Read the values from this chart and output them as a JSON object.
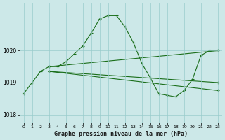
{
  "background_color": "#cce8e8",
  "plot_bg_color": "#cce8e8",
  "grid_color": "#99cccc",
  "line_color": "#1a6e1a",
  "title": "Graphe pression niveau de la mer (hPa)",
  "xlim": [
    -0.5,
    23.5
  ],
  "ylim": [
    1017.75,
    1021.5
  ],
  "yticks": [
    1018,
    1019,
    1020
  ],
  "xticks": [
    0,
    1,
    2,
    3,
    4,
    5,
    6,
    7,
    8,
    9,
    10,
    11,
    12,
    13,
    14,
    15,
    16,
    17,
    18,
    19,
    20,
    21,
    22,
    23
  ],
  "series": [
    {
      "x": [
        0,
        1,
        2,
        3,
        4,
        5,
        6,
        7,
        8,
        9,
        10,
        11,
        12,
        13,
        14,
        15,
        16,
        17,
        18,
        19,
        20,
        21,
        22,
        23
      ],
      "y": [
        1018.65,
        1019.0,
        1019.35,
        1019.5,
        1019.5,
        1019.65,
        1019.9,
        1020.15,
        1020.55,
        1021.0,
        1021.1,
        1021.1,
        1020.75,
        1020.25,
        1019.6,
        1019.15,
        1018.65,
        1018.6,
        1018.55,
        1018.75,
        1019.1,
        1019.85,
        1020.0,
        1020.0
      ]
    },
    {
      "x": [
        3,
        23
      ],
      "y": [
        1019.5,
        1020.0
      ]
    },
    {
      "x": [
        3,
        23
      ],
      "y": [
        1019.35,
        1019.0
      ]
    },
    {
      "x": [
        3,
        23
      ],
      "y": [
        1019.35,
        1018.75
      ]
    }
  ]
}
